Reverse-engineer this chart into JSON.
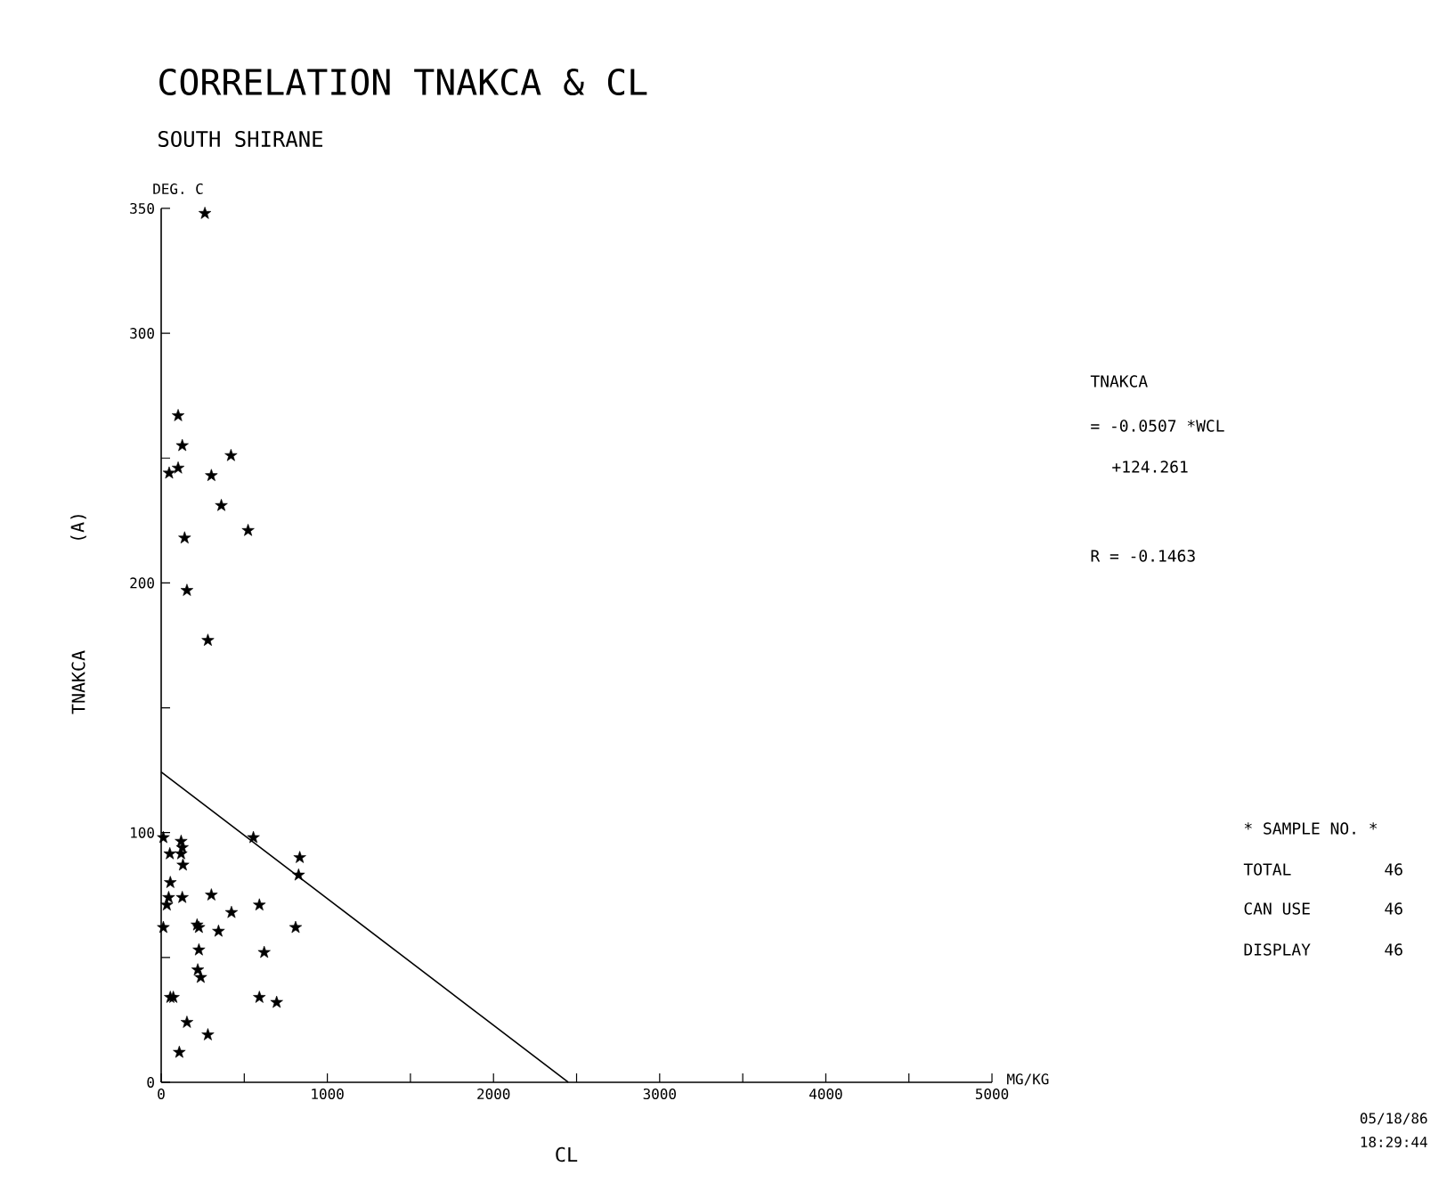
{
  "chart_data": {
    "type": "scatter",
    "title": "CORRELATION TNAKCA & CL",
    "subtitle": "SOUTH SHIRANE",
    "xlabel": "CL",
    "ylabel": "TNAKCA",
    "annotations": [
      "DEG. C",
      "MG/KG",
      "(A)",
      "TNAKCA",
      "=   -0.0507 *WCL",
      "+124.261",
      "R = -0.1463",
      "* SAMPLE NO. *",
      "TOTAL",
      "46",
      "CAN USE",
      "46",
      "DISPLAY",
      "46",
      "05/18/86",
      "18:29:44"
    ],
    "xlim": [
      0,
      5000
    ],
    "ylim": [
      0,
      350
    ],
    "xticks": [
      0,
      {
        "value": 500,
        "label": null
      },
      1000,
      {
        "value": 1500,
        "label": null
      },
      2000,
      {
        "value": 2500,
        "label": null
      },
      3000,
      {
        "value": 3500,
        "label": null
      },
      4000,
      {
        "value": 4500,
        "label": null
      },
      5000
    ],
    "yticks": [
      0,
      {
        "value": 50,
        "label": null
      },
      100,
      {
        "value": 150,
        "label": null
      },
      200,
      {
        "value": 250,
        "label": null
      },
      300,
      350
    ],
    "grid": false,
    "series": [
      {
        "marker": "star",
        "color": "#000000",
        "x": [
          263,
          102,
          127,
          420,
          102,
          48,
          302,
          362,
          523,
          141,
          155,
          281,
          13,
          120,
          127,
          52,
          120,
          131,
          55,
          45,
          34,
          127,
          302,
          555,
          834,
          827,
          591,
          423,
          216,
          227,
          345,
          13,
          809,
          227,
          620,
          220,
          238,
          55,
          73,
          591,
          695,
          155,
          281,
          109
        ],
        "values": [
          348,
          267,
          255,
          251,
          246,
          244,
          243,
          231,
          221,
          218,
          197,
          177,
          98,
          96.5,
          94,
          91.5,
          91.5,
          87,
          80,
          74,
          71,
          74,
          75,
          98,
          90,
          83,
          71,
          68,
          63,
          62,
          60.5,
          62,
          62,
          53,
          52,
          45,
          42,
          34,
          34,
          34,
          32,
          24,
          19,
          12
        ]
      },
      {
        "type": "line",
        "marker": "none",
        "line_style": "solid",
        "color": "#000000",
        "x": [
          0,
          2450
        ],
        "values": [
          124.3,
          0
        ]
      }
    ]
  }
}
